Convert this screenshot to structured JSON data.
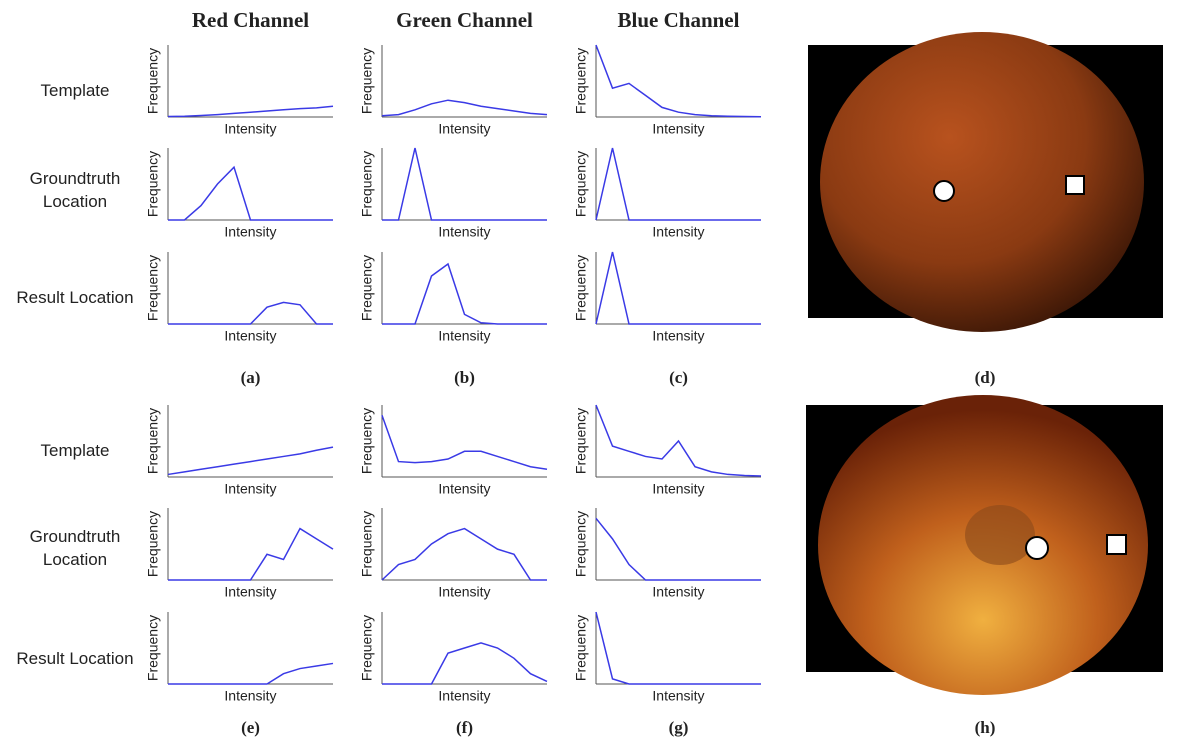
{
  "figure": {
    "column_headers": [
      "Red Channel",
      "Green Channel",
      "Blue Channel"
    ],
    "row_labels": [
      "Template",
      "Groundtruth Location",
      "Result Location",
      "Template",
      "Groundtruth Location",
      "Result Location"
    ],
    "panel_labels": [
      "(a)",
      "(b)",
      "(c)",
      "(d)",
      "(e)",
      "(f)",
      "(g)",
      "(h)"
    ]
  },
  "chart_data": [
    {
      "type": "line",
      "xlabel": "Intensity",
      "ylabel": "Frequency",
      "color": "#3a3ae6",
      "xlim": [
        0,
        2000
      ],
      "ylim": [
        0,
        3000
      ],
      "x": [
        0,
        200,
        400,
        600,
        800,
        1000,
        1200,
        1400,
        1600,
        1800,
        2000
      ],
      "values": [
        20,
        30,
        60,
        100,
        150,
        200,
        250,
        300,
        350,
        380,
        450
      ]
    },
    {
      "type": "line",
      "xlabel": "Intensity",
      "ylabel": "Frequency",
      "color": "#3a3ae6",
      "xlim": [
        0,
        2000
      ],
      "ylim": [
        0,
        3000
      ],
      "x": [
        0,
        200,
        400,
        600,
        800,
        1000,
        1200,
        1400,
        1600,
        1800,
        2000
      ],
      "values": [
        50,
        100,
        300,
        550,
        700,
        600,
        450,
        350,
        250,
        150,
        100
      ]
    },
    {
      "type": "line",
      "xlabel": "Intensity",
      "ylabel": "Frequency",
      "color": "#3a3ae6",
      "xlim": [
        0,
        2000
      ],
      "ylim": [
        0,
        3000
      ],
      "x": [
        0,
        200,
        400,
        600,
        800,
        1000,
        1200,
        1400,
        1600,
        1800,
        2000
      ],
      "values": [
        3000,
        1200,
        1400,
        900,
        400,
        200,
        100,
        50,
        30,
        20,
        10
      ]
    },
    {
      "type": "line",
      "xlabel": "Intensity",
      "ylabel": "Frequency",
      "color": "#3a3ae6",
      "xlim": [
        0,
        2000
      ],
      "ylim": [
        0,
        3000
      ],
      "x": [
        0,
        200,
        400,
        600,
        800,
        1000,
        1200,
        1400,
        1600,
        1800,
        2000
      ],
      "values": [
        0,
        0,
        600,
        1500,
        2200,
        0,
        0,
        0,
        0,
        0,
        0
      ]
    },
    {
      "type": "line",
      "xlabel": "Intensity",
      "ylabel": "Frequency",
      "color": "#3a3ae6",
      "xlim": [
        0,
        2000
      ],
      "ylim": [
        0,
        3000
      ],
      "x": [
        0,
        200,
        400,
        600,
        800,
        1000,
        1200,
        1400,
        1600,
        1800,
        2000
      ],
      "values": [
        0,
        0,
        3000,
        0,
        0,
        0,
        0,
        0,
        0,
        0,
        0
      ]
    },
    {
      "type": "line",
      "xlabel": "Intensity",
      "ylabel": "Frequency",
      "color": "#3a3ae6",
      "xlim": [
        0,
        2000
      ],
      "ylim": [
        0,
        3000
      ],
      "x": [
        0,
        200,
        400,
        600,
        800,
        1000,
        1200,
        1400,
        1600,
        1800,
        2000
      ],
      "values": [
        0,
        3000,
        0,
        0,
        0,
        0,
        0,
        0,
        0,
        0,
        0
      ]
    },
    {
      "type": "line",
      "xlabel": "Intensity",
      "ylabel": "Frequency",
      "color": "#3a3ae6",
      "xlim": [
        0,
        2000
      ],
      "ylim": [
        0,
        3000
      ],
      "x": [
        0,
        200,
        400,
        600,
        800,
        1000,
        1200,
        1400,
        1600,
        1800,
        2000
      ],
      "values": [
        0,
        0,
        0,
        0,
        0,
        0,
        700,
        900,
        800,
        0,
        0
      ]
    },
    {
      "type": "line",
      "xlabel": "Intensity",
      "ylabel": "Frequency",
      "color": "#3a3ae6",
      "xlim": [
        0,
        2000
      ],
      "ylim": [
        0,
        3000
      ],
      "x": [
        0,
        200,
        400,
        600,
        800,
        1000,
        1200,
        1400,
        1600,
        1800,
        2000
      ],
      "values": [
        0,
        0,
        0,
        2000,
        2500,
        400,
        50,
        0,
        0,
        0,
        0
      ]
    },
    {
      "type": "line",
      "xlabel": "Intensity",
      "ylabel": "Frequency",
      "color": "#3a3ae6",
      "xlim": [
        0,
        2000
      ],
      "ylim": [
        0,
        3000
      ],
      "x": [
        0,
        200,
        400,
        600,
        800,
        1000,
        1200,
        1400,
        1600,
        1800,
        2000
      ],
      "values": [
        0,
        3000,
        0,
        0,
        0,
        0,
        0,
        0,
        0,
        0,
        0
      ]
    },
    {
      "type": "line",
      "xlabel": "Intensity",
      "ylabel": "Frequency",
      "color": "#3a3ae6",
      "xlim": [
        0,
        2000
      ],
      "ylim": [
        0,
        1400
      ],
      "x": [
        0,
        200,
        400,
        600,
        800,
        1000,
        1200,
        1400,
        1600,
        1800,
        2000
      ],
      "values": [
        50,
        100,
        150,
        200,
        250,
        300,
        350,
        400,
        450,
        520,
        580
      ]
    },
    {
      "type": "line",
      "xlabel": "Intensity",
      "ylabel": "Frequency",
      "color": "#3a3ae6",
      "xlim": [
        0,
        2000
      ],
      "ylim": [
        0,
        1400
      ],
      "x": [
        0,
        200,
        400,
        600,
        800,
        1000,
        1200,
        1400,
        1600,
        1800,
        2000
      ],
      "values": [
        1200,
        300,
        280,
        300,
        350,
        500,
        500,
        400,
        300,
        200,
        150
      ]
    },
    {
      "type": "line",
      "xlabel": "Intensity",
      "ylabel": "Frequency",
      "color": "#3a3ae6",
      "xlim": [
        0,
        2000
      ],
      "ylim": [
        0,
        1400
      ],
      "x": [
        0,
        200,
        400,
        600,
        800,
        1000,
        1200,
        1400,
        1600,
        1800,
        2000
      ],
      "values": [
        1400,
        600,
        500,
        400,
        350,
        700,
        200,
        100,
        50,
        30,
        20
      ]
    },
    {
      "type": "line",
      "xlabel": "Intensity",
      "ylabel": "Frequency",
      "color": "#3a3ae6",
      "xlim": [
        0,
        2000
      ],
      "ylim": [
        0,
        1400
      ],
      "x": [
        0,
        200,
        400,
        600,
        800,
        1000,
        1200,
        1400,
        1600,
        1800,
        2000
      ],
      "values": [
        0,
        0,
        0,
        0,
        0,
        0,
        500,
        400,
        1000,
        800,
        600
      ]
    },
    {
      "type": "line",
      "xlabel": "Intensity",
      "ylabel": "Frequency",
      "color": "#3a3ae6",
      "xlim": [
        0,
        2000
      ],
      "ylim": [
        0,
        1400
      ],
      "x": [
        0,
        200,
        400,
        600,
        800,
        1000,
        1200,
        1400,
        1600,
        1800,
        2000
      ],
      "values": [
        0,
        300,
        400,
        700,
        900,
        1000,
        800,
        600,
        500,
        0,
        0
      ]
    },
    {
      "type": "line",
      "xlabel": "Intensity",
      "ylabel": "Frequency",
      "color": "#3a3ae6",
      "xlim": [
        0,
        2000
      ],
      "ylim": [
        0,
        1400
      ],
      "x": [
        0,
        200,
        400,
        600,
        800,
        1000,
        1200,
        1400,
        1600,
        1800,
        2000
      ],
      "values": [
        1200,
        800,
        300,
        0,
        0,
        0,
        0,
        0,
        0,
        0,
        0
      ]
    },
    {
      "type": "line",
      "xlabel": "Intensity",
      "ylabel": "Frequency",
      "color": "#3a3ae6",
      "xlim": [
        0,
        2000
      ],
      "ylim": [
        0,
        1400
      ],
      "x": [
        0,
        200,
        400,
        600,
        800,
        1000,
        1200,
        1400,
        1600,
        1800,
        2000
      ],
      "values": [
        0,
        0,
        0,
        0,
        0,
        0,
        0,
        200,
        300,
        350,
        400
      ]
    },
    {
      "type": "line",
      "xlabel": "Intensity",
      "ylabel": "Frequency",
      "color": "#3a3ae6",
      "xlim": [
        0,
        2000
      ],
      "ylim": [
        0,
        1400
      ],
      "x": [
        0,
        200,
        400,
        600,
        800,
        1000,
        1200,
        1400,
        1600,
        1800,
        2000
      ],
      "values": [
        0,
        0,
        0,
        0,
        600,
        700,
        800,
        700,
        500,
        200,
        50
      ]
    },
    {
      "type": "line",
      "xlabel": "Intensity",
      "ylabel": "Frequency",
      "color": "#3a3ae6",
      "xlim": [
        0,
        2000
      ],
      "ylim": [
        0,
        1400
      ],
      "x": [
        0,
        200,
        400,
        600,
        800,
        1000,
        1200,
        1400,
        1600,
        1800,
        2000
      ],
      "values": [
        1400,
        100,
        0,
        0,
        0,
        0,
        0,
        0,
        0,
        0,
        0
      ]
    }
  ]
}
